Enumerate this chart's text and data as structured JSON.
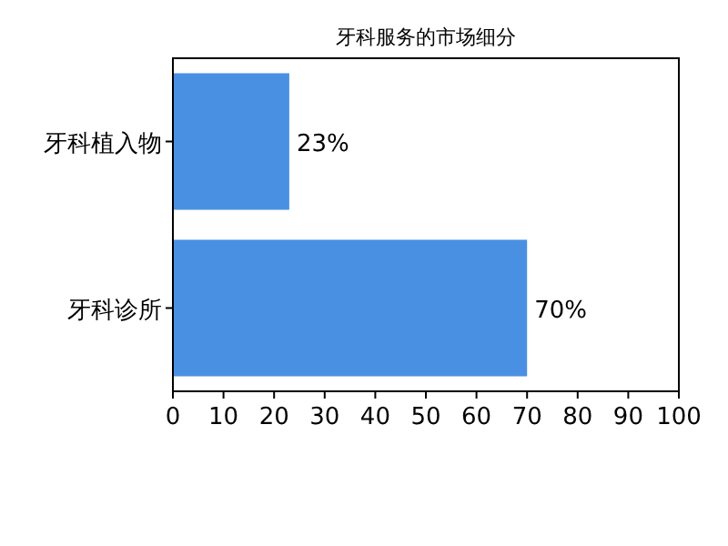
{
  "chart_data": {
    "type": "bar",
    "orientation": "horizontal",
    "title": "牙科服务的市场细分",
    "categories": [
      "牙科植入物",
      "牙科诊所"
    ],
    "values": [
      23,
      70
    ],
    "value_labels": [
      "23%",
      "70%"
    ],
    "color": "#4a90e2",
    "xlim": [
      0,
      100
    ],
    "xticks": [
      0,
      10,
      20,
      30,
      40,
      50,
      60,
      70,
      80,
      90,
      100
    ],
    "grid": false
  }
}
